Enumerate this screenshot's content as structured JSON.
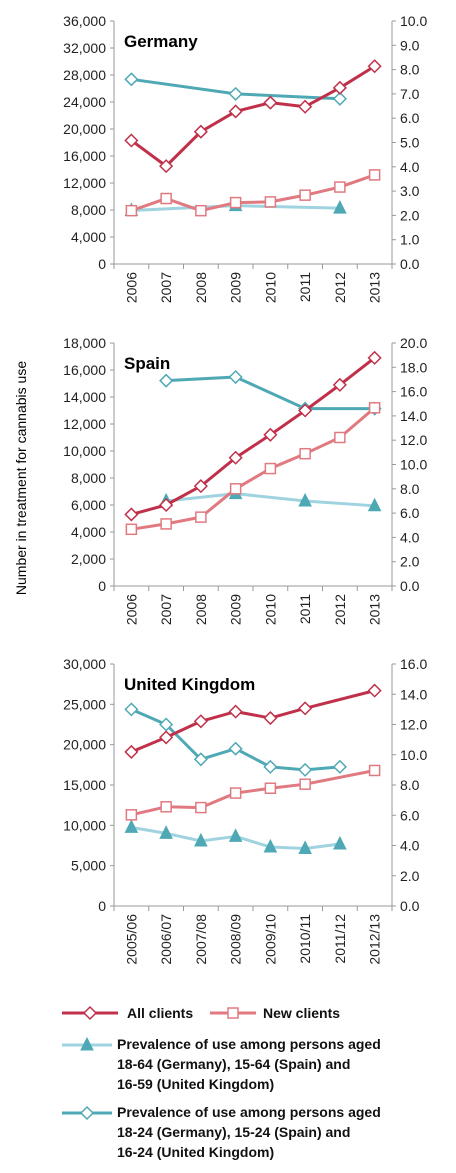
{
  "y_axis_label": "Number in treatment for cannabis use",
  "legend": [
    {
      "key": "all_clients",
      "label": "All clients",
      "color": "#c0304a",
      "marker": "diamond"
    },
    {
      "key": "new_clients",
      "label": "New clients",
      "color": "#e07a80",
      "marker": "square"
    },
    {
      "key": "prev_adult",
      "label_lines": [
        "Prevalence of use among persons aged",
        "18-64 (Germany), 15-64 (Spain) and",
        "16-59 (United Kingdom)"
      ],
      "color": "#9fd3e0",
      "marker": "triangle"
    },
    {
      "key": "prev_young",
      "label_lines": [
        "Prevalence of use among persons aged",
        "18-24 (Germany), 15-24 (Spain) and",
        "16-24 (United Kingdom)"
      ],
      "color": "#4fa9b5",
      "marker": "diamond"
    }
  ],
  "chart_data": [
    {
      "type": "line",
      "title": "Germany",
      "categories": [
        "2006",
        "2007",
        "2008",
        "2009",
        "2010",
        "2011",
        "2012",
        "2013"
      ],
      "ylim_left": [
        0,
        36000
      ],
      "yticks_left": [
        "0",
        "4,000",
        "8,000",
        "12,000",
        "16,000",
        "20,000",
        "24,000",
        "28,000",
        "32,000",
        "36,000"
      ],
      "ylim_right": [
        0,
        10
      ],
      "yticks_right": [
        "0.0",
        "1.0",
        "2.0",
        "3.0",
        "4.0",
        "5.0",
        "6.0",
        "7.0",
        "8.0",
        "9.0",
        "10.0"
      ],
      "series": [
        {
          "name": "All clients",
          "axis": "left",
          "values": [
            18300,
            14500,
            19600,
            22600,
            23900,
            23300,
            26100,
            29300
          ]
        },
        {
          "name": "New clients",
          "axis": "left",
          "values": [
            7900,
            9700,
            7900,
            9100,
            9200,
            10200,
            11400,
            13200
          ]
        },
        {
          "name": "Prevalence of use among persons aged 18-64 (Germany), 15-64 (Spain) and 16-59 (United Kingdom)",
          "axis": "right",
          "values": [
            2.2,
            null,
            null,
            2.4,
            null,
            null,
            2.3,
            null
          ]
        },
        {
          "name": "Prevalence of use among persons aged 18-24 (Germany), 15-24 (Spain) and 16-24 (United Kingdom)",
          "axis": "right",
          "values": [
            7.6,
            null,
            null,
            7.0,
            null,
            null,
            6.8,
            null
          ]
        }
      ]
    },
    {
      "type": "line",
      "title": "Spain",
      "categories": [
        "2006",
        "2007",
        "2008",
        "2009",
        "2010",
        "2011",
        "2012",
        "2013"
      ],
      "ylim_left": [
        0,
        18000
      ],
      "yticks_left": [
        "0",
        "2,000",
        "4,000",
        "6,000",
        "8,000",
        "10,000",
        "12,000",
        "14,000",
        "16,000",
        "18,000"
      ],
      "ylim_right": [
        0,
        20
      ],
      "yticks_right": [
        "0.0",
        "2.0",
        "4.0",
        "6.0",
        "8.0",
        "10.0",
        "12.0",
        "14.0",
        "16.0",
        "18.0",
        "20.0"
      ],
      "series": [
        {
          "name": "All clients",
          "axis": "left",
          "values": [
            5300,
            6000,
            7400,
            9500,
            11200,
            13000,
            14900,
            16900
          ]
        },
        {
          "name": "New clients",
          "axis": "left",
          "values": [
            4200,
            4600,
            5100,
            7200,
            8700,
            9800,
            11000,
            13200
          ]
        },
        {
          "name": "Prevalence of use among persons aged 18-64 (Germany), 15-64 (Spain) and 16-59 (United Kingdom)",
          "axis": "right",
          "values": [
            null,
            7.0,
            null,
            7.6,
            null,
            7.0,
            null,
            6.6
          ]
        },
        {
          "name": "Prevalence of use among persons aged 18-24 (Germany), 15-24 (Spain) and 16-24 (United Kingdom)",
          "axis": "right",
          "values": [
            null,
            16.9,
            null,
            17.2,
            null,
            14.6,
            null,
            14.6
          ]
        }
      ]
    },
    {
      "type": "line",
      "title": "United Kingdom",
      "categories": [
        "2005/06",
        "2006/07",
        "2007/08",
        "2008/09",
        "2009/10",
        "2010/11",
        "2011/12",
        "2012/13"
      ],
      "ylim_left": [
        0,
        30000
      ],
      "yticks_left": [
        "0",
        "5,000",
        "10,000",
        "15,000",
        "20,000",
        "25,000",
        "30,000"
      ],
      "ylim_right": [
        0,
        16
      ],
      "yticks_right": [
        "0.0",
        "2.0",
        "4.0",
        "6.0",
        "8.0",
        "10.0",
        "12.0",
        "14.0",
        "16.0"
      ],
      "series": [
        {
          "name": "All clients",
          "axis": "left",
          "values": [
            19100,
            20900,
            22900,
            24100,
            23300,
            24500,
            null,
            26700
          ]
        },
        {
          "name": "New clients",
          "axis": "left",
          "values": [
            11300,
            12300,
            12200,
            14000,
            14600,
            15100,
            null,
            16800
          ]
        },
        {
          "name": "Prevalence of use among persons aged 18-64 (Germany), 15-64 (Spain) and 16-59 (United Kingdom)",
          "axis": "right",
          "values": [
            5.2,
            4.8,
            4.3,
            4.6,
            3.9,
            3.8,
            4.1,
            null
          ]
        },
        {
          "name": "Prevalence of use among persons aged 18-24 (Germany), 15-24 (Spain) and 16-24 (United Kingdom)",
          "axis": "right",
          "values": [
            13.0,
            12.0,
            9.7,
            10.4,
            9.2,
            9.0,
            9.2,
            null
          ]
        }
      ]
    }
  ]
}
